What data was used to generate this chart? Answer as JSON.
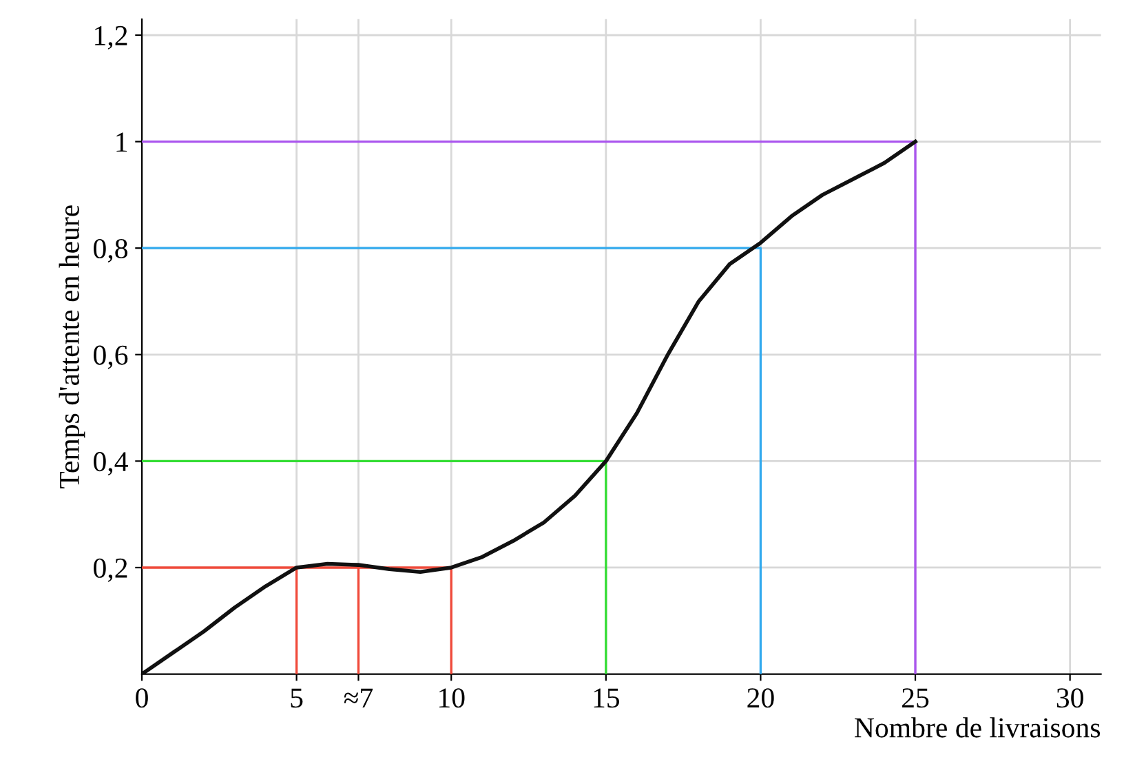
{
  "chart_data": {
    "type": "line",
    "xlabel": "Nombre de livraisons",
    "ylabel": "Temps d'attente en heure",
    "xlim": [
      0,
      31
    ],
    "ylim": [
      0,
      1.23
    ],
    "xticks": [
      0,
      5,
      {
        "value": 7,
        "label": "≈7"
      },
      10,
      15,
      20,
      25,
      30
    ],
    "yticks": [
      {
        "value": 0.2,
        "label": "0,2"
      },
      {
        "value": 0.4,
        "label": "0,4"
      },
      {
        "value": 0.6,
        "label": "0,6"
      },
      {
        "value": 0.8,
        "label": "0,8"
      },
      {
        "value": 1,
        "label": "1"
      },
      {
        "value": 1.2,
        "label": "1,2"
      }
    ],
    "grid": true,
    "marker": "none",
    "line_style": "solid",
    "series": [
      {
        "color": "#f04a3a",
        "x": [
          0,
          10
        ],
        "values": [
          0.2,
          0.2
        ]
      },
      {
        "color": "#f04a3a",
        "x": [
          5,
          5
        ],
        "values": [
          0,
          0.2
        ]
      },
      {
        "color": "#f04a3a",
        "x": [
          7,
          7
        ],
        "values": [
          0,
          0.2
        ]
      },
      {
        "color": "#f04a3a",
        "x": [
          10,
          10
        ],
        "values": [
          0,
          0.2
        ]
      },
      {
        "color": "#33dd33",
        "x": [
          0,
          15,
          15
        ],
        "values": [
          0.4,
          0.4,
          0
        ]
      },
      {
        "color": "#33aaee",
        "x": [
          0,
          20,
          20
        ],
        "values": [
          0.8,
          0.8,
          0
        ]
      },
      {
        "color": "#aa55ee",
        "x": [
          0,
          25,
          25
        ],
        "values": [
          1,
          1,
          0
        ]
      },
      {
        "color": "#111111",
        "x": [
          0,
          1,
          2,
          3,
          4,
          5,
          6,
          7,
          8,
          9,
          10,
          11,
          12,
          13,
          14,
          15,
          16,
          17,
          18,
          19,
          20,
          21,
          22,
          23,
          24,
          25
        ],
        "values": [
          0,
          0.04,
          0.08,
          0.125,
          0.165,
          0.2,
          0.207,
          0.205,
          0.197,
          0.192,
          0.2,
          0.22,
          0.25,
          0.285,
          0.335,
          0.4,
          0.49,
          0.6,
          0.7,
          0.77,
          0.81,
          0.86,
          0.9,
          0.93,
          0.96,
          1.0
        ]
      }
    ]
  }
}
